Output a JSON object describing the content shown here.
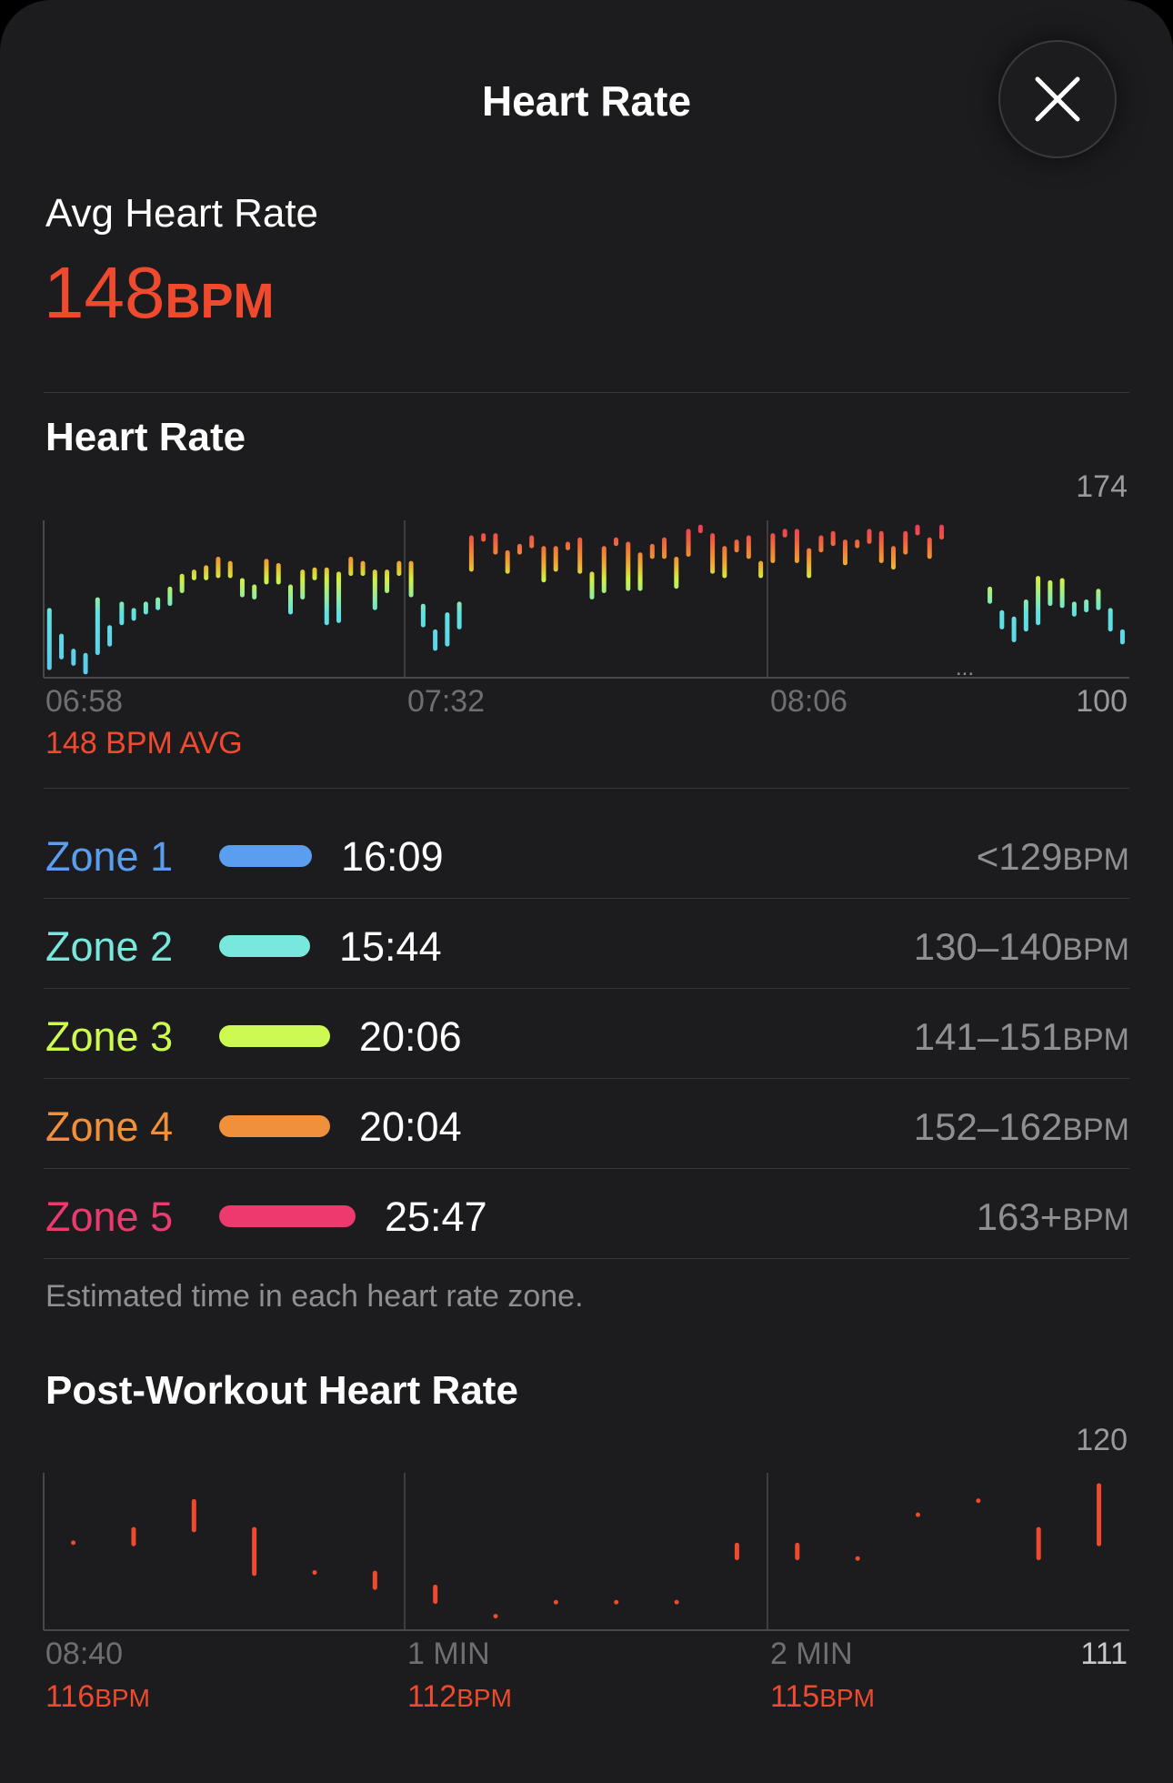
{
  "header": {
    "title": "Heart Rate",
    "close_icon": "close-icon"
  },
  "summary": {
    "label": "Avg Heart Rate",
    "value": "148",
    "unit": "BPM",
    "color": "#f04a2e"
  },
  "heart_rate_chart": {
    "title": "Heart Rate",
    "y_max": "174",
    "y_min": "100",
    "x_labels": [
      "06:58",
      "07:32",
      "08:06"
    ],
    "avg_label": "148 BPM AVG",
    "gap_indicator": "...",
    "chart_data": {
      "type": "bar",
      "ylim": [
        100,
        174
      ],
      "ranges": [
        [
          104,
          133
        ],
        [
          109,
          121
        ],
        [
          106,
          114
        ],
        [
          102,
          112
        ],
        [
          111,
          138
        ],
        [
          115,
          125
        ],
        [
          125,
          136
        ],
        [
          127,
          133
        ],
        [
          130,
          136
        ],
        [
          132,
          138
        ],
        [
          134,
          143
        ],
        [
          140,
          149
        ],
        [
          146,
          151
        ],
        [
          146,
          153
        ],
        [
          147,
          157
        ],
        [
          147,
          155
        ],
        [
          138,
          147
        ],
        [
          137,
          144
        ],
        [
          144,
          156
        ],
        [
          144,
          154
        ],
        [
          130,
          144
        ],
        [
          137,
          151
        ],
        [
          146,
          152
        ],
        [
          125,
          152
        ],
        [
          126,
          150
        ],
        [
          148,
          157
        ],
        [
          148,
          155
        ],
        [
          132,
          151
        ],
        [
          140,
          151
        ],
        [
          148,
          155
        ],
        [
          138,
          155
        ],
        [
          124,
          135
        ],
        [
          113,
          123
        ],
        [
          115,
          131
        ],
        [
          123,
          136
        ],
        [
          150,
          167
        ],
        [
          164,
          168
        ],
        [
          158,
          168
        ],
        [
          149,
          160
        ],
        [
          158,
          163
        ],
        [
          161,
          167
        ],
        [
          145,
          162
        ],
        [
          150,
          162
        ],
        [
          160,
          164
        ],
        [
          149,
          166
        ],
        [
          137,
          150
        ],
        [
          140,
          162
        ],
        [
          162,
          166
        ],
        [
          141,
          164
        ],
        [
          141,
          159
        ],
        [
          156,
          163
        ],
        [
          156,
          166
        ],
        [
          142,
          157
        ],
        [
          157,
          170
        ],
        [
          168,
          172
        ],
        [
          149,
          168
        ],
        [
          147,
          162
        ],
        [
          159,
          165
        ],
        [
          156,
          167
        ],
        [
          147,
          155
        ],
        [
          154,
          168
        ],
        [
          166,
          170
        ],
        [
          154,
          170
        ],
        [
          147,
          161
        ],
        [
          159,
          167
        ],
        [
          162,
          169
        ],
        [
          153,
          165
        ],
        [
          161,
          165
        ],
        [
          163,
          170
        ],
        [
          154,
          169
        ],
        [
          151,
          162
        ],
        [
          158,
          169
        ],
        [
          167,
          172
        ],
        [
          156,
          166
        ],
        [
          165,
          172
        ],
        null,
        null,
        null,
        [
          135,
          143
        ],
        [
          123,
          132
        ],
        [
          117,
          129
        ],
        [
          122,
          137
        ],
        [
          125,
          148
        ],
        [
          134,
          146
        ],
        [
          133,
          147
        ],
        [
          129,
          136
        ],
        [
          131,
          137
        ],
        [
          132,
          142
        ],
        [
          122,
          133
        ],
        [
          116,
          123
        ]
      ]
    }
  },
  "zones": [
    {
      "name": "Zone 1",
      "time": "16:09",
      "range": "<129",
      "unit": "BPM",
      "color": "#5a9ef0"
    },
    {
      "name": "Zone 2",
      "time": "15:44",
      "range": "130–140",
      "unit": "BPM",
      "color": "#78e8dc"
    },
    {
      "name": "Zone 3",
      "time": "20:06",
      "range": "141–151",
      "unit": "BPM",
      "color": "#cdfa50"
    },
    {
      "name": "Zone 4",
      "time": "20:04",
      "range": "152–162",
      "unit": "BPM",
      "color": "#f0903a"
    },
    {
      "name": "Zone 5",
      "time": "25:47",
      "range": "163+",
      "unit": "BPM",
      "color": "#ec3a6e"
    }
  ],
  "zones_footnote": "Estimated time in each heart rate zone.",
  "post_workout": {
    "title": "Post-Workout Heart Rate",
    "y_max": "120",
    "y_min": "111",
    "x_labels": [
      {
        "label": "08:40",
        "value": "116",
        "unit": "BPM"
      },
      {
        "label": "1 MIN",
        "value": "112",
        "unit": "BPM"
      },
      {
        "label": "2 MIN",
        "value": "115",
        "unit": "BPM"
      }
    ],
    "chart_data": {
      "type": "bar",
      "ylim": [
        111,
        120
      ],
      "color": "#f04a2e",
      "ranges": [
        [
          116,
          116
        ],
        [
          115.8,
          116.9
        ],
        [
          116.6,
          118.5
        ],
        [
          114.1,
          116.9
        ],
        [
          114.3,
          114.3
        ],
        [
          113.3,
          114.4
        ],
        [
          112.5,
          113.6
        ],
        [
          111.8,
          111.8
        ],
        [
          112.6,
          112.6
        ],
        [
          112.6,
          112.6
        ],
        [
          112.6,
          112.6
        ],
        [
          115,
          116
        ],
        [
          115,
          116
        ],
        [
          115.1,
          115.1
        ],
        [
          117.6,
          117.6
        ],
        [
          118.4,
          118.4
        ],
        [
          115,
          116.9
        ],
        [
          115.8,
          119.4
        ]
      ]
    }
  }
}
